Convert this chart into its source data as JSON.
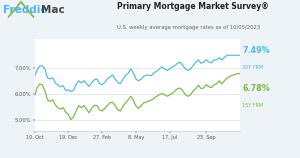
{
  "title": "Primary Mortgage Market Survey®",
  "subtitle": "U.S. weekly average mortgage rates as of 10/05/2023",
  "bg_color": "#eef3f7",
  "plot_bg_color": "#ffffff",
  "line1_color": "#4db8e8",
  "line2_color": "#78b943",
  "yticks": [
    5.0,
    6.0,
    7.0
  ],
  "ylim": [
    4.55,
    8.1
  ],
  "xtick_labels": [
    "10. Oct",
    "19. Dec",
    "27. Feb",
    "8. May",
    "17. Jul",
    "25. Sep"
  ],
  "freddie_color": "#4db8e8",
  "mac_color": "#444444",
  "roof_color": "#78b943",
  "y30": [
    6.66,
    6.92,
    7.08,
    7.08,
    6.95,
    6.61,
    6.58,
    6.61,
    6.42,
    6.33,
    6.27,
    6.31,
    6.12,
    6.15,
    6.09,
    6.13,
    6.36,
    6.5,
    6.42,
    6.5,
    6.39,
    6.28,
    6.43,
    6.54,
    6.57,
    6.39,
    6.35,
    6.43,
    6.57,
    6.65,
    6.73,
    6.57,
    6.43,
    6.39,
    6.57,
    6.71,
    6.79,
    6.96,
    6.81,
    6.57,
    6.5,
    6.57,
    6.67,
    6.72,
    6.71,
    6.71,
    6.81,
    6.87,
    6.96,
    7.04,
    6.96,
    6.9,
    6.96,
    7.04,
    7.09,
    7.18,
    7.22,
    7.09,
    6.96,
    6.9,
    6.96,
    7.09,
    7.22,
    7.31,
    7.18,
    7.22,
    7.31,
    7.23,
    7.19,
    7.31,
    7.31,
    7.4,
    7.31,
    7.4,
    7.49,
    7.49,
    7.49,
    7.49,
    7.49,
    7.49
  ],
  "y15": [
    5.9,
    6.23,
    6.38,
    6.34,
    6.11,
    5.76,
    5.7,
    5.76,
    5.56,
    5.46,
    5.4,
    5.46,
    5.28,
    5.2,
    5.0,
    5.1,
    5.33,
    5.54,
    5.46,
    5.54,
    5.4,
    5.26,
    5.43,
    5.55,
    5.54,
    5.38,
    5.33,
    5.43,
    5.54,
    5.65,
    5.67,
    5.54,
    5.38,
    5.33,
    5.52,
    5.64,
    5.76,
    5.9,
    5.76,
    5.52,
    5.43,
    5.54,
    5.65,
    5.67,
    5.72,
    5.76,
    5.83,
    5.9,
    5.96,
    6.01,
    5.96,
    5.9,
    5.96,
    6.01,
    6.11,
    6.2,
    6.22,
    6.11,
    5.96,
    5.9,
    5.96,
    6.11,
    6.2,
    6.33,
    6.2,
    6.22,
    6.35,
    6.27,
    6.24,
    6.35,
    6.38,
    6.5,
    6.38,
    6.5,
    6.6,
    6.67,
    6.71,
    6.75,
    6.78,
    6.78
  ]
}
